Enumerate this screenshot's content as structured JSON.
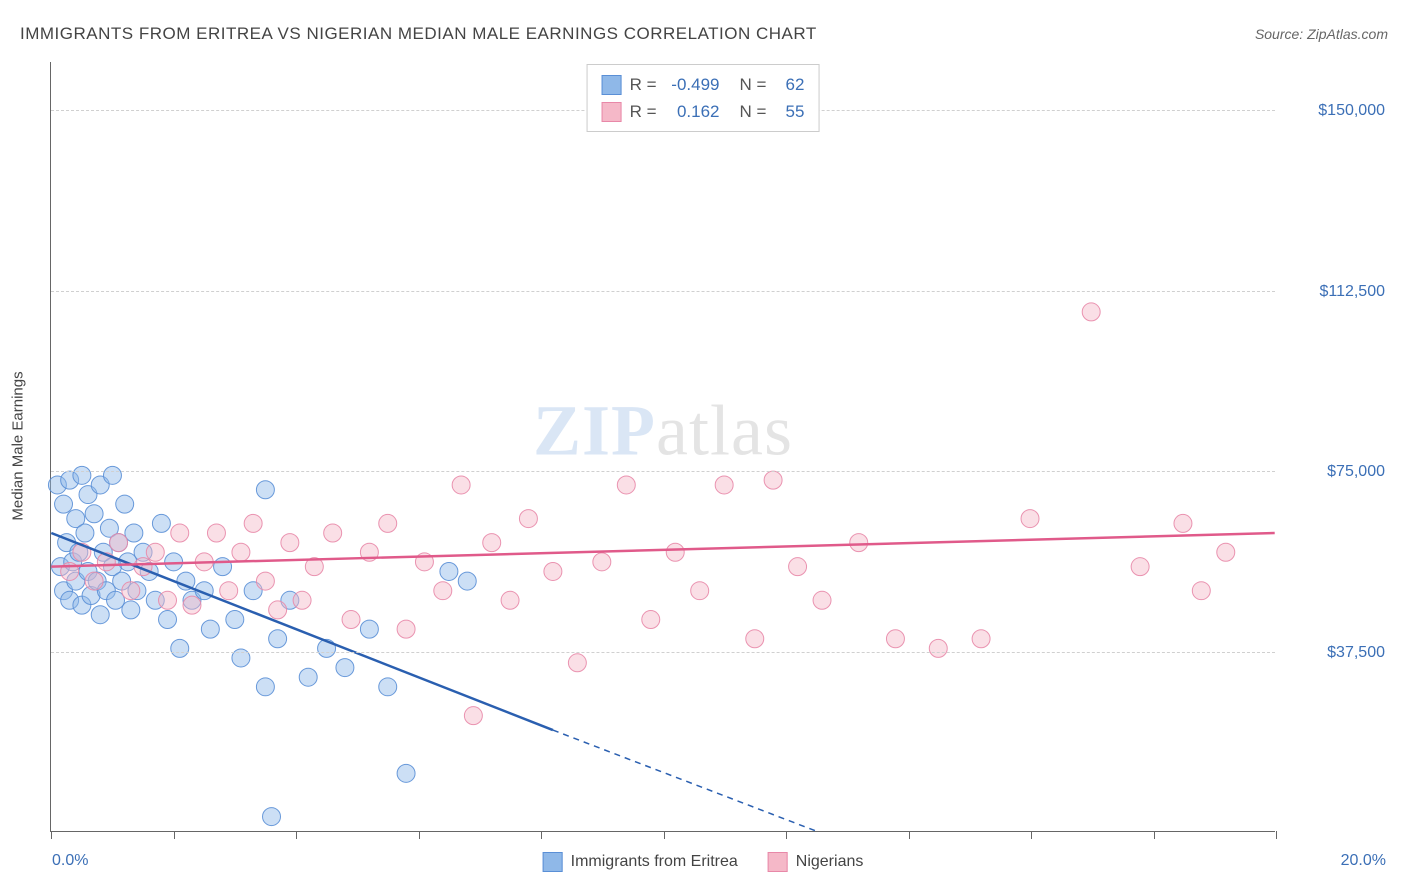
{
  "title": "IMMIGRANTS FROM ERITREA VS NIGERIAN MEDIAN MALE EARNINGS CORRELATION CHART",
  "source_label": "Source:",
  "source_value": "ZipAtlas.com",
  "watermark_a": "ZIP",
  "watermark_b": "atlas",
  "y_axis_title": "Median Male Earnings",
  "chart": {
    "type": "scatter",
    "xlim": [
      0,
      20
    ],
    "ylim": [
      0,
      160000
    ],
    "x_ticks": [
      0,
      2,
      4,
      6,
      8,
      10,
      12,
      14,
      16,
      18,
      20
    ],
    "x_tick_labels_shown": {
      "0": "0.0%",
      "20": "20.0%"
    },
    "y_gridlines": [
      37500,
      75000,
      112500,
      150000
    ],
    "y_tick_labels": [
      "$37,500",
      "$75,000",
      "$112,500",
      "$150,000"
    ],
    "background_color": "#ffffff",
    "grid_color": "#d0d0d0",
    "axis_color": "#666666",
    "tick_label_color": "#3b6fb6",
    "marker_radius": 9,
    "marker_fill_opacity": 0.45,
    "marker_stroke_opacity": 0.9,
    "line_width": 2.5,
    "series": [
      {
        "name": "Immigrants from Eritrea",
        "color_fill": "#8fb8e8",
        "color_stroke": "#5a8fd6",
        "line_color": "#2a5fb0",
        "R": "-0.499",
        "N": "62",
        "trend": {
          "x1": 0,
          "y1": 62000,
          "x2": 8.2,
          "y2": 21000,
          "x2_ext": 12.5,
          "y2_ext": 0
        },
        "points": [
          [
            0.1,
            72000
          ],
          [
            0.15,
            55000
          ],
          [
            0.2,
            68000
          ],
          [
            0.2,
            50000
          ],
          [
            0.25,
            60000
          ],
          [
            0.3,
            73000
          ],
          [
            0.3,
            48000
          ],
          [
            0.35,
            56000
          ],
          [
            0.4,
            65000
          ],
          [
            0.4,
            52000
          ],
          [
            0.45,
            58000
          ],
          [
            0.5,
            74000
          ],
          [
            0.5,
            47000
          ],
          [
            0.55,
            62000
          ],
          [
            0.6,
            54000
          ],
          [
            0.6,
            70000
          ],
          [
            0.65,
            49000
          ],
          [
            0.7,
            66000
          ],
          [
            0.75,
            52000
          ],
          [
            0.8,
            72000
          ],
          [
            0.8,
            45000
          ],
          [
            0.85,
            58000
          ],
          [
            0.9,
            50000
          ],
          [
            0.95,
            63000
          ],
          [
            1.0,
            55000
          ],
          [
            1.0,
            74000
          ],
          [
            1.05,
            48000
          ],
          [
            1.1,
            60000
          ],
          [
            1.15,
            52000
          ],
          [
            1.2,
            68000
          ],
          [
            1.25,
            56000
          ],
          [
            1.3,
            46000
          ],
          [
            1.35,
            62000
          ],
          [
            1.4,
            50000
          ],
          [
            1.5,
            58000
          ],
          [
            1.6,
            54000
          ],
          [
            1.7,
            48000
          ],
          [
            1.8,
            64000
          ],
          [
            1.9,
            44000
          ],
          [
            2.0,
            56000
          ],
          [
            2.1,
            38000
          ],
          [
            2.2,
            52000
          ],
          [
            2.3,
            48000
          ],
          [
            2.5,
            50000
          ],
          [
            2.6,
            42000
          ],
          [
            2.8,
            55000
          ],
          [
            3.0,
            44000
          ],
          [
            3.1,
            36000
          ],
          [
            3.3,
            50000
          ],
          [
            3.5,
            30000
          ],
          [
            3.5,
            71000
          ],
          [
            3.7,
            40000
          ],
          [
            3.9,
            48000
          ],
          [
            4.2,
            32000
          ],
          [
            4.5,
            38000
          ],
          [
            4.8,
            34000
          ],
          [
            5.2,
            42000
          ],
          [
            5.5,
            30000
          ],
          [
            5.8,
            12000
          ],
          [
            6.5,
            54000
          ],
          [
            3.6,
            3000
          ],
          [
            6.8,
            52000
          ]
        ]
      },
      {
        "name": "Nigerians",
        "color_fill": "#f5b8c8",
        "color_stroke": "#e888a8",
        "line_color": "#e05a8a",
        "R": "0.162",
        "N": "55",
        "trend": {
          "x1": 0,
          "y1": 55000,
          "x2": 20,
          "y2": 62000
        },
        "points": [
          [
            0.3,
            54000
          ],
          [
            0.5,
            58000
          ],
          [
            0.7,
            52000
          ],
          [
            0.9,
            56000
          ],
          [
            1.1,
            60000
          ],
          [
            1.3,
            50000
          ],
          [
            1.5,
            55000
          ],
          [
            1.7,
            58000
          ],
          [
            1.9,
            48000
          ],
          [
            2.1,
            62000
          ],
          [
            2.3,
            47000
          ],
          [
            2.5,
            56000
          ],
          [
            2.7,
            62000
          ],
          [
            2.9,
            50000
          ],
          [
            3.1,
            58000
          ],
          [
            3.3,
            64000
          ],
          [
            3.5,
            52000
          ],
          [
            3.7,
            46000
          ],
          [
            3.9,
            60000
          ],
          [
            4.1,
            48000
          ],
          [
            4.3,
            55000
          ],
          [
            4.6,
            62000
          ],
          [
            4.9,
            44000
          ],
          [
            5.2,
            58000
          ],
          [
            5.5,
            64000
          ],
          [
            5.8,
            42000
          ],
          [
            6.1,
            56000
          ],
          [
            6.4,
            50000
          ],
          [
            6.7,
            72000
          ],
          [
            6.9,
            24000
          ],
          [
            7.2,
            60000
          ],
          [
            7.5,
            48000
          ],
          [
            7.8,
            65000
          ],
          [
            8.2,
            54000
          ],
          [
            8.6,
            35000
          ],
          [
            9.0,
            56000
          ],
          [
            9.4,
            72000
          ],
          [
            9.8,
            44000
          ],
          [
            10.2,
            58000
          ],
          [
            10.6,
            50000
          ],
          [
            11.0,
            72000
          ],
          [
            11.5,
            40000
          ],
          [
            11.8,
            73000
          ],
          [
            12.2,
            55000
          ],
          [
            12.6,
            48000
          ],
          [
            13.2,
            60000
          ],
          [
            13.8,
            40000
          ],
          [
            14.5,
            38000
          ],
          [
            15.2,
            40000
          ],
          [
            16.0,
            65000
          ],
          [
            17.0,
            108000
          ],
          [
            17.8,
            55000
          ],
          [
            18.5,
            64000
          ],
          [
            19.2,
            58000
          ],
          [
            18.8,
            50000
          ]
        ]
      }
    ]
  },
  "stats_legend": {
    "R_label": "R =",
    "N_label": "N ="
  }
}
